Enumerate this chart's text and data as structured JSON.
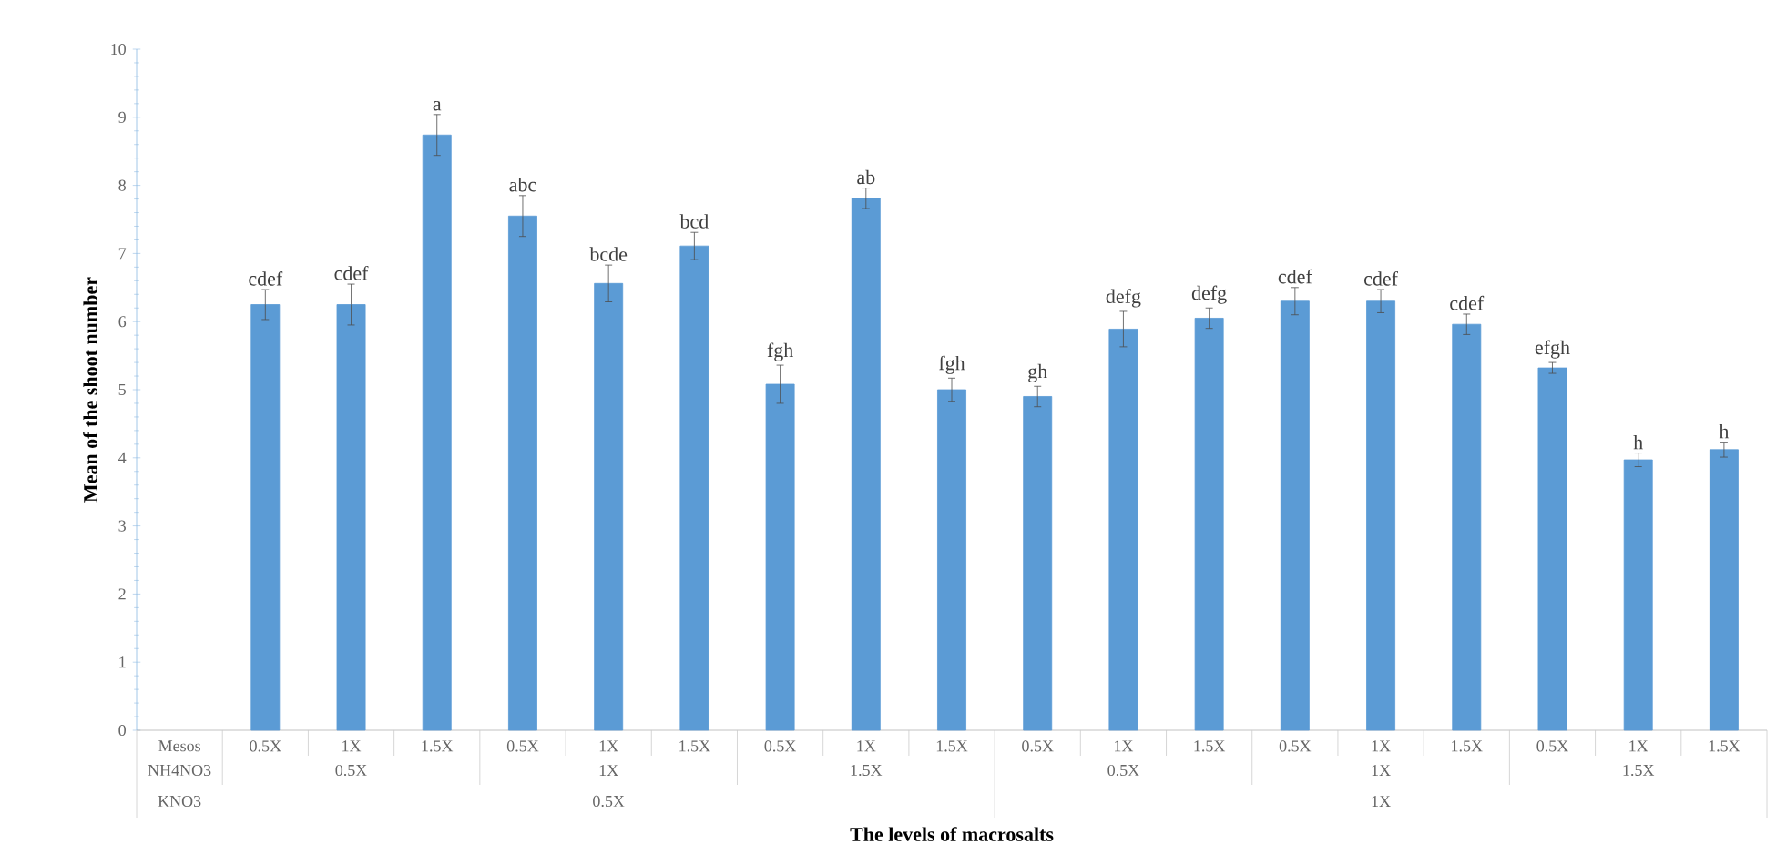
{
  "chart_data": {
    "type": "bar",
    "ylabel": "Mean of the shoot number",
    "xlabel": "The levels of macrosalts",
    "categories": [
      "Mesos",
      "0.5X",
      "1X",
      "1.5X",
      "0.5X",
      "1X",
      "1.5X",
      "0.5X",
      "1X",
      "1.5X",
      "0.5X",
      "1X",
      "1.5X",
      "0.5X",
      "1X",
      "1.5X",
      "0.5X",
      "1X",
      "1.5X"
    ],
    "values": [
      null,
      6.25,
      6.25,
      8.74,
      7.55,
      6.56,
      7.11,
      5.08,
      7.81,
      5.0,
      4.9,
      5.89,
      6.05,
      6.3,
      6.3,
      5.96,
      5.32,
      3.97,
      4.12
    ],
    "errors": [
      null,
      0.22,
      0.3,
      0.3,
      0.3,
      0.27,
      0.2,
      0.28,
      0.15,
      0.17,
      0.15,
      0.26,
      0.15,
      0.2,
      0.17,
      0.15,
      0.08,
      0.1,
      0.11
    ],
    "value_labels": [
      null,
      "cdef",
      "cdef",
      "a",
      "abc",
      "bcde",
      "bcd",
      "fgh",
      "ab",
      "fgh",
      "gh",
      "defg",
      "defg",
      "cdef",
      "cdef",
      "cdef",
      "efgh",
      "h",
      "h"
    ],
    "color": "#5b9bd5",
    "ylim": [
      0,
      10
    ],
    "yticks": [
      0,
      1,
      2,
      3,
      4,
      5,
      6,
      7,
      8,
      9,
      10
    ],
    "annotations": [
      "NH4NO3",
      "0.5X",
      "1X",
      "1.5X",
      "0.5X",
      "1X",
      "1.5X",
      "KNO3",
      "0.5X",
      "1X"
    ]
  }
}
